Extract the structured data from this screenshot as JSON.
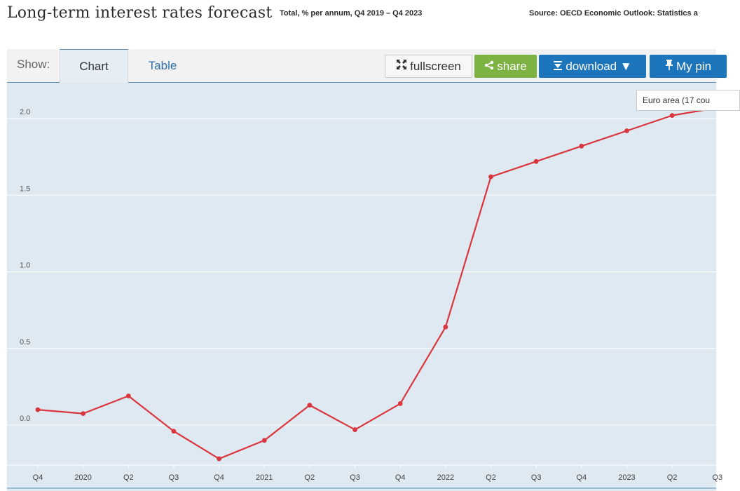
{
  "header": {
    "title": "Long-term interest rates forecast",
    "subtitle": "Total, % per annum, Q4 2019 – Q4 2023",
    "source": "Source: OECD Economic Outlook: Statistics a"
  },
  "toolbar": {
    "show_label": "Show:",
    "tabs": [
      {
        "label": "Chart",
        "active": true
      },
      {
        "label": "Table",
        "active": false
      }
    ],
    "buttons": {
      "fullscreen": "fullscreen",
      "share": "share",
      "download": "download ▼",
      "pin": "My pin"
    }
  },
  "tooltip": {
    "text": "Euro area (17 cou"
  },
  "colors": {
    "series": "#d9363e",
    "plot_bg": "#dfe9f1",
    "grid": "#ffffff",
    "share_button": "#7cb342",
    "primary_button": "#1d76bc"
  },
  "chart_data": {
    "type": "line",
    "title": "Long-term interest rates forecast",
    "subtitle": "Total, % per annum, Q4 2019 – Q4 2023",
    "x": [
      "Q4",
      "2020",
      "Q2",
      "Q3",
      "Q4",
      "2021",
      "Q2",
      "Q3",
      "Q4",
      "2022",
      "Q2",
      "Q3",
      "Q4",
      "2023",
      "Q2",
      "Q3"
    ],
    "series": [
      {
        "name": "Euro area (17 cou",
        "values": [
          0.1,
          0.075,
          0.19,
          -0.04,
          -0.22,
          -0.1,
          0.13,
          -0.03,
          0.14,
          0.64,
          1.62,
          1.72,
          1.82,
          1.92,
          2.02,
          2.07
        ]
      }
    ],
    "yticks": [
      0.0,
      0.5,
      1.0,
      1.5,
      2.0
    ],
    "ylim": [
      -0.25,
      2.25
    ],
    "grid": true,
    "xlabel": "",
    "ylabel": ""
  }
}
